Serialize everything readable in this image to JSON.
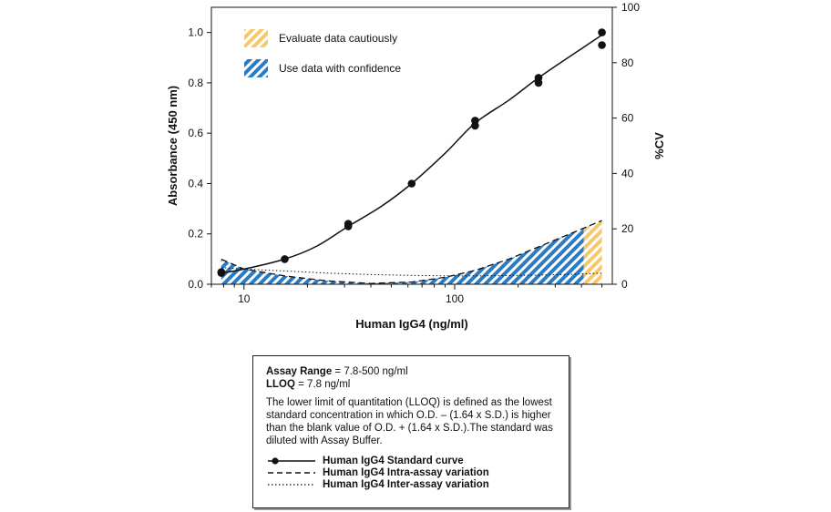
{
  "chart_data": {
    "type": "line",
    "x_scale": "log",
    "xlabel": "Human IgG4 (ng/ml)",
    "ylabel_left": "Absorbance (450 nm)",
    "ylabel_right": "%CV",
    "xlim": [
      7,
      560
    ],
    "ylim_left": [
      0,
      1.1
    ],
    "ylim_right": [
      0,
      100
    ],
    "x_ticks": [
      10,
      100
    ],
    "y_left_ticks": [
      0.0,
      0.2,
      0.4,
      0.6,
      0.8,
      1.0
    ],
    "y_left_tick_labels": [
      "0.0",
      "0.2",
      "0.4",
      "0.6",
      "0.8",
      "1.0"
    ],
    "y_right_ticks": [
      0,
      20,
      40,
      60,
      80,
      100
    ],
    "grid": false,
    "standard_curve": {
      "name": "Human IgG4 Standard curve",
      "points": [
        {
          "x": 7.8,
          "y": 0.045
        },
        {
          "x": 7.8,
          "y": 0.048
        },
        {
          "x": 15.6,
          "y": 0.1
        },
        {
          "x": 31.25,
          "y": 0.23
        },
        {
          "x": 31.25,
          "y": 0.24
        },
        {
          "x": 62.5,
          "y": 0.4
        },
        {
          "x": 125,
          "y": 0.63
        },
        {
          "x": 125,
          "y": 0.65
        },
        {
          "x": 250,
          "y": 0.8
        },
        {
          "x": 250,
          "y": 0.82
        },
        {
          "x": 500,
          "y": 0.95
        },
        {
          "x": 500,
          "y": 1.0
        }
      ],
      "curve": [
        {
          "x": 7.8,
          "y": 0.045
        },
        {
          "x": 10,
          "y": 0.06
        },
        {
          "x": 15.6,
          "y": 0.1
        },
        {
          "x": 22,
          "y": 0.15
        },
        {
          "x": 31.25,
          "y": 0.23
        },
        {
          "x": 45,
          "y": 0.31
        },
        {
          "x": 62.5,
          "y": 0.4
        },
        {
          "x": 90,
          "y": 0.52
        },
        {
          "x": 125,
          "y": 0.64
        },
        {
          "x": 180,
          "y": 0.73
        },
        {
          "x": 250,
          "y": 0.82
        },
        {
          "x": 360,
          "y": 0.91
        },
        {
          "x": 500,
          "y": 0.99
        }
      ]
    },
    "intra_assay": {
      "name": "Human IgG4 Intra-assay variation",
      "points": [
        {
          "x": 7.8,
          "y": 9
        },
        {
          "x": 10,
          "y": 5.5
        },
        {
          "x": 15.6,
          "y": 3
        },
        {
          "x": 25,
          "y": 1.2
        },
        {
          "x": 40,
          "y": 0.3
        },
        {
          "x": 62.5,
          "y": 0.8
        },
        {
          "x": 90,
          "y": 2.5
        },
        {
          "x": 125,
          "y": 5
        },
        {
          "x": 180,
          "y": 9
        },
        {
          "x": 250,
          "y": 13.5
        },
        {
          "x": 360,
          "y": 18.5
        },
        {
          "x": 500,
          "y": 23
        }
      ]
    },
    "inter_assay": {
      "name": "Human IgG4 Inter-assay variation",
      "points": [
        {
          "x": 7.8,
          "y": 6
        },
        {
          "x": 10,
          "y": 5.5
        },
        {
          "x": 15.6,
          "y": 4.8
        },
        {
          "x": 25,
          "y": 4
        },
        {
          "x": 40,
          "y": 3.5
        },
        {
          "x": 62.5,
          "y": 3.2
        },
        {
          "x": 100,
          "y": 3
        },
        {
          "x": 160,
          "y": 3.1
        },
        {
          "x": 250,
          "y": 3.3
        },
        {
          "x": 360,
          "y": 3.6
        },
        {
          "x": 500,
          "y": 4
        }
      ]
    },
    "regions": [
      {
        "label": "Use data with confidence",
        "x_from": 7.8,
        "x_to": 410,
        "color": "#2a7bc4"
      },
      {
        "label": "Evaluate data cautiously",
        "x_from": 410,
        "x_to": 500,
        "color": "#f5c96b"
      }
    ],
    "legend_regions": [
      {
        "label": "Evaluate data cautiously",
        "color": "#f5c96b"
      },
      {
        "label": "Use data with confidence",
        "color": "#2a7bc4"
      }
    ]
  },
  "info": {
    "assay_range_label": "Assay Range",
    "assay_range_value": " = 7.8-500 ng/ml",
    "lloq_label": "LLOQ",
    "lloq_value": " = 7.8 ng/ml",
    "description": "The lower limit of quantitation (LLOQ) is defined as the lowest standard concentration in which O.D. – (1.64 x S.D.) is higher than the blank value of O.D. + (1.64 x S.D.).The standard was diluted with Assay Buffer.",
    "legend": [
      {
        "label": "Human IgG4 Standard curve",
        "style": "solid-dot"
      },
      {
        "label": "Human IgG4 Intra-assay variation",
        "style": "dashed"
      },
      {
        "label": "Human IgG4 Inter-assay variation",
        "style": "dotted"
      }
    ]
  }
}
